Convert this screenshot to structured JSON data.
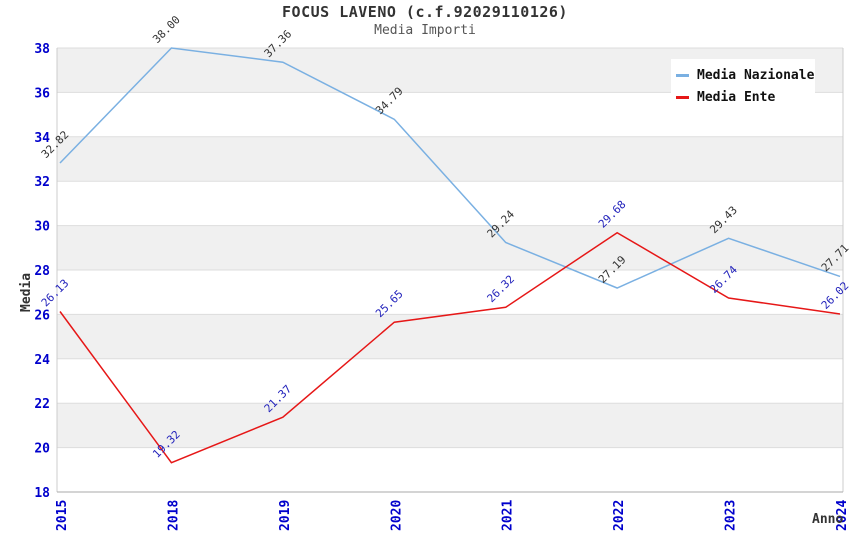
{
  "header": {
    "title": "FOCUS LAVENO (c.f.92029110126)",
    "subtitle": "Media Importi"
  },
  "chart_data": {
    "type": "line",
    "title": "FOCUS LAVENO (c.f.92029110126)",
    "subtitle": "Media Importi",
    "xlabel": "Anno",
    "ylabel": "Media",
    "categories": [
      "2015",
      "2018",
      "2019",
      "2020",
      "2021",
      "2022",
      "2023",
      "2024"
    ],
    "series": [
      {
        "name": "Media Nazionale",
        "color": "#7ab0e2",
        "label_color": "#333333",
        "values": [
          32.82,
          38.0,
          37.36,
          34.79,
          29.24,
          27.19,
          29.43,
          27.71
        ]
      },
      {
        "name": "Media Ente",
        "color": "#e61717",
        "label_color": "#2222bb",
        "values": [
          26.13,
          19.32,
          21.37,
          25.65,
          26.32,
          29.68,
          26.74,
          26.02
        ]
      }
    ],
    "ylim": [
      18,
      38
    ],
    "yticks": [
      18,
      20,
      22,
      24,
      26,
      28,
      30,
      32,
      34,
      36,
      38
    ],
    "value_label_decimals": 2,
    "grid": true,
    "legend_position": "top-right",
    "colors": {
      "tick_label": "#0000cc",
      "axis_title": "#333333",
      "title": "#333333",
      "subtitle": "#555555",
      "band": "#f0f0f0",
      "gridline": "#dddddd",
      "axis_line": "#aaaaaa",
      "border": "#cccccc",
      "background": "#ffffff",
      "legend_background": "#ffffff"
    }
  }
}
